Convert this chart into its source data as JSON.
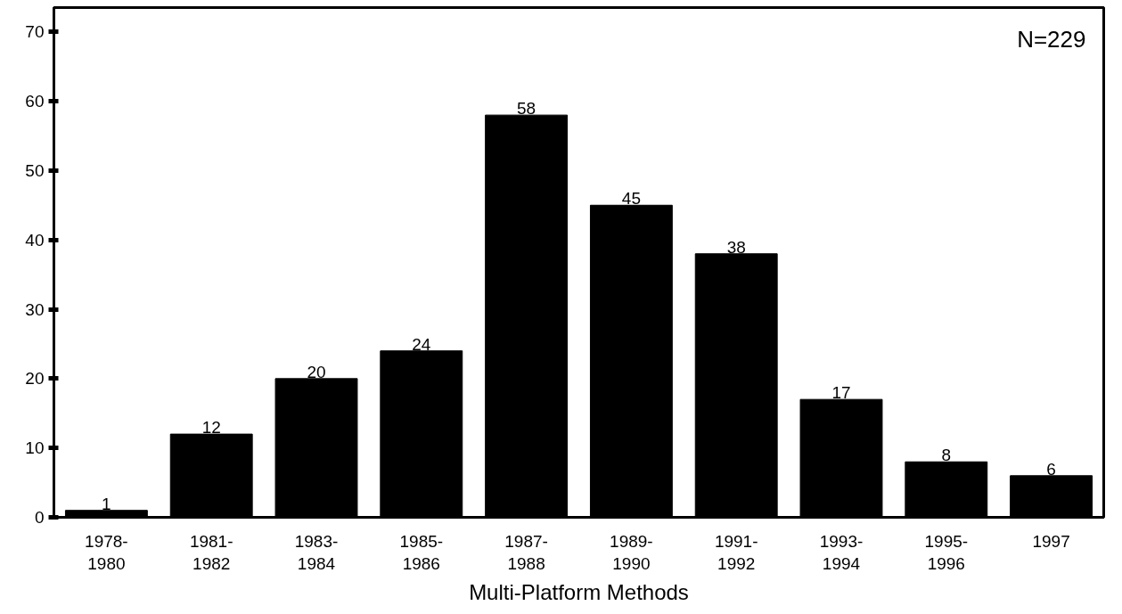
{
  "chart_data": {
    "type": "bar",
    "xlabel": "Multi-Platform Methods",
    "categories": [
      "1978-\n1980",
      "1981-\n1982",
      "1983-\n1984",
      "1985-\n1986",
      "1987-\n1988",
      "1989-\n1990",
      "1991-\n1992",
      "1993-\n1994",
      "1995-\n1996",
      "1997"
    ],
    "values": [
      1,
      12,
      20,
      24,
      58,
      45,
      38,
      17,
      8,
      6
    ],
    "color": "#000000",
    "ylim": [
      0,
      73.5
    ],
    "yticks": [
      0,
      10,
      20,
      30,
      40,
      50,
      60,
      70
    ],
    "data_labels": true,
    "grid": false,
    "annotations": [
      "N=229"
    ]
  }
}
